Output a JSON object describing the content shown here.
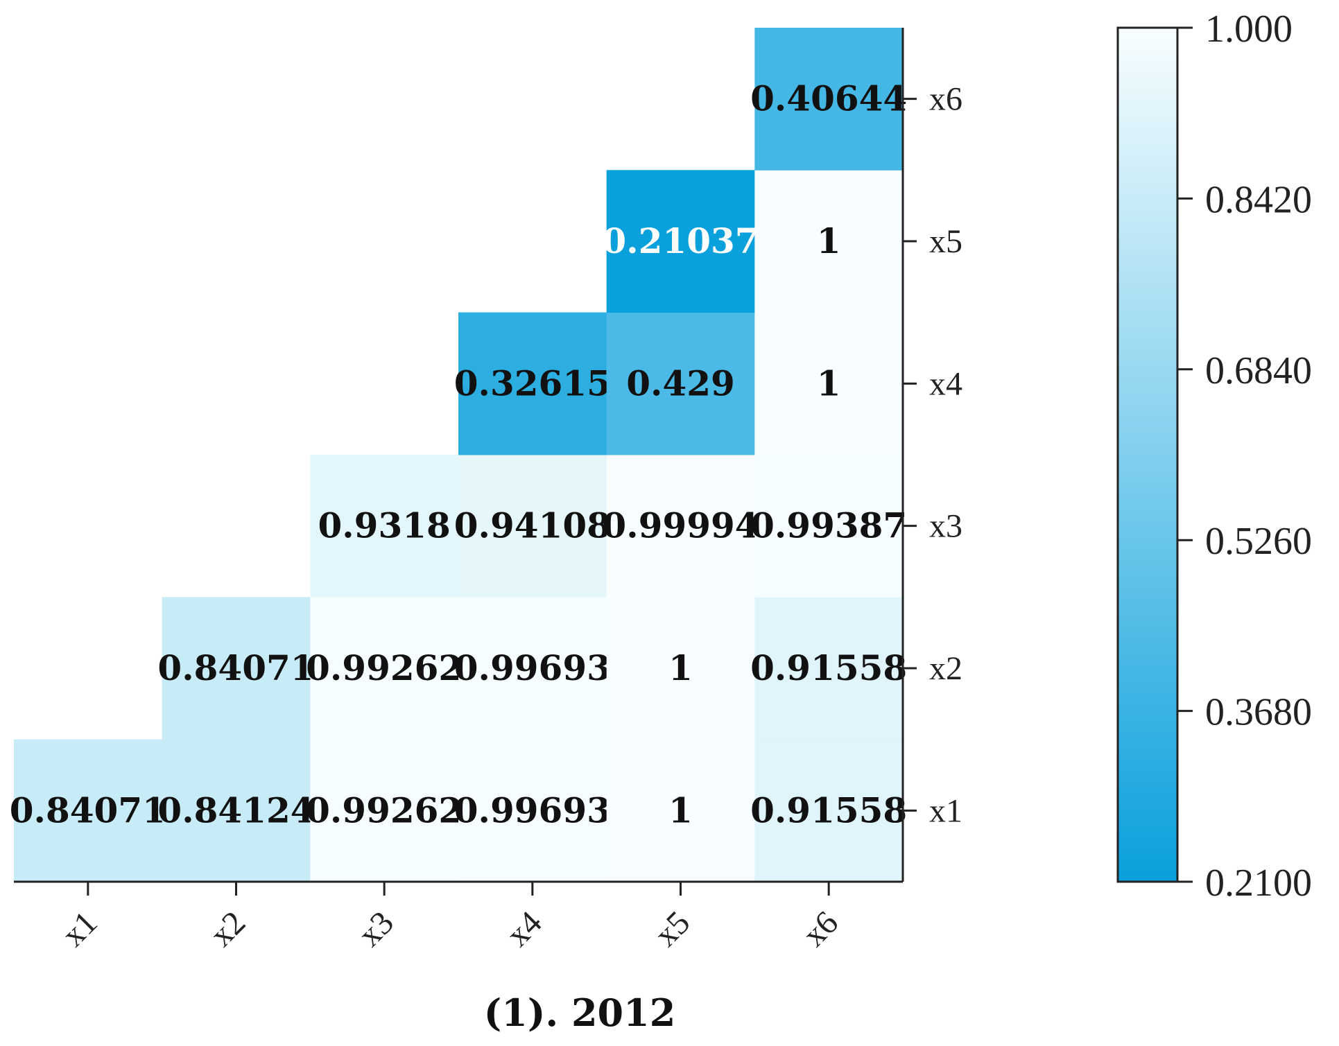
{
  "chart_data": {
    "type": "heatmap",
    "title": "(1). 2012",
    "x_labels": [
      "x1",
      "x2",
      "x3",
      "x4",
      "x5",
      "x6"
    ],
    "y_labels": [
      "x1",
      "x2",
      "x3",
      "x4",
      "x5",
      "x6"
    ],
    "cells": [
      {
        "x": "x1",
        "y": "x1",
        "value": 0.84071,
        "label": "0.84071"
      },
      {
        "x": "x2",
        "y": "x1",
        "value": 0.84124,
        "label": "0.84124"
      },
      {
        "x": "x3",
        "y": "x1",
        "value": 0.99262,
        "label": "0.99262"
      },
      {
        "x": "x4",
        "y": "x1",
        "value": 0.99693,
        "label": "0.99693"
      },
      {
        "x": "x5",
        "y": "x1",
        "value": 1,
        "label": "1"
      },
      {
        "x": "x6",
        "y": "x1",
        "value": 0.91558,
        "label": "0.91558"
      },
      {
        "x": "x2",
        "y": "x2",
        "value": 0.84071,
        "label": "0.84071"
      },
      {
        "x": "x3",
        "y": "x2",
        "value": 0.99262,
        "label": "0.99262"
      },
      {
        "x": "x4",
        "y": "x2",
        "value": 0.99693,
        "label": "0.99693"
      },
      {
        "x": "x5",
        "y": "x2",
        "value": 1,
        "label": "1"
      },
      {
        "x": "x6",
        "y": "x2",
        "value": 0.91558,
        "label": "0.91558"
      },
      {
        "x": "x3",
        "y": "x3",
        "value": 0.9318,
        "label": "0.9318"
      },
      {
        "x": "x4",
        "y": "x3",
        "value": 0.94108,
        "label": "0.94108"
      },
      {
        "x": "x5",
        "y": "x3",
        "value": 0.99994,
        "label": "0.99994"
      },
      {
        "x": "x6",
        "y": "x3",
        "value": 0.99387,
        "label": "0.99387"
      },
      {
        "x": "x4",
        "y": "x4",
        "value": 0.32615,
        "label": "0.32615"
      },
      {
        "x": "x5",
        "y": "x4",
        "value": 0.429,
        "label": "0.429"
      },
      {
        "x": "x6",
        "y": "x4",
        "value": 1,
        "label": "1"
      },
      {
        "x": "x5",
        "y": "x5",
        "value": 0.21037,
        "label": "0.21037"
      },
      {
        "x": "x6",
        "y": "x5",
        "value": 1,
        "label": "1"
      },
      {
        "x": "x6",
        "y": "x6",
        "value": 0.40644,
        "label": "0.40644"
      }
    ],
    "colorbar": {
      "min": 0.21,
      "max": 1.0,
      "ticks": [
        1.0,
        0.842,
        0.684,
        0.526,
        0.368,
        0.21
      ],
      "tick_labels": [
        "1.000",
        "0.8420",
        "0.6840",
        "0.5260",
        "0.3680",
        "0.2100"
      ],
      "color_low": "#0aa0dc",
      "color_high": "#f8feff"
    },
    "light_label_color": "#ffffff",
    "dark_label_color": "#111111"
  }
}
